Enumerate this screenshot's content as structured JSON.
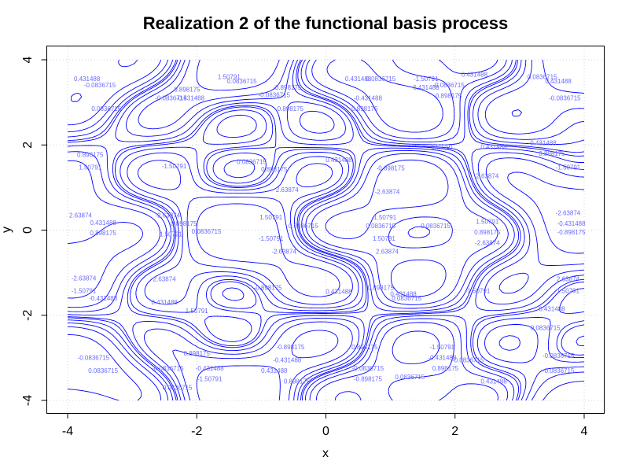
{
  "chart_data": {
    "type": "contour",
    "title": "Realization 2 of the functional basis process",
    "xlabel": "x",
    "ylabel": "y",
    "xlim": [
      -4,
      4
    ],
    "ylim": [
      -4,
      4
    ],
    "x_ticks": [
      -4,
      -2,
      0,
      2,
      4
    ],
    "y_ticks": [
      -4,
      -2,
      0,
      2,
      4
    ],
    "grid": true,
    "line_color": "#0000ff",
    "contour_levels": [
      "-2.63874",
      "-1.50791",
      "-0.898175",
      "-0.431488",
      "-0.0836715",
      "0.0836715",
      "0.431488",
      "0.898175",
      "1.50791",
      "2.63874"
    ],
    "contour_labels": [
      {
        "x": -3.7,
        "y": 3.5,
        "text": "0.431488"
      },
      {
        "x": -3.5,
        "y": 3.35,
        "text": "-0.0836715"
      },
      {
        "x": -3.4,
        "y": 2.8,
        "text": "0.0836715"
      },
      {
        "x": -3.65,
        "y": 1.72,
        "text": "0.898175"
      },
      {
        "x": -3.65,
        "y": 1.42,
        "text": "1.50791"
      },
      {
        "x": -3.8,
        "y": 0.3,
        "text": "2.63874"
      },
      {
        "x": -3.45,
        "y": 0.12,
        "text": "0.431488"
      },
      {
        "x": -3.45,
        "y": -0.12,
        "text": "0.898175"
      },
      {
        "x": -3.75,
        "y": -1.18,
        "text": "-2.63874"
      },
      {
        "x": -3.75,
        "y": -1.48,
        "text": "-1.50791"
      },
      {
        "x": -3.45,
        "y": -1.65,
        "text": "-0.431488"
      },
      {
        "x": -3.6,
        "y": -3.05,
        "text": "-0.0836715"
      },
      {
        "x": -3.45,
        "y": -3.35,
        "text": "0.0836715"
      },
      {
        "x": -2.4,
        "y": 3.05,
        "text": "-0.0836715"
      },
      {
        "x": -2.1,
        "y": 3.05,
        "text": "-0.431488"
      },
      {
        "x": -2.15,
        "y": 3.25,
        "text": "0.898175"
      },
      {
        "x": -1.5,
        "y": 3.55,
        "text": "1.50791"
      },
      {
        "x": -1.3,
        "y": 3.45,
        "text": "0.0836715"
      },
      {
        "x": -2.35,
        "y": 1.45,
        "text": "-1.50791"
      },
      {
        "x": -2.45,
        "y": 0.3,
        "text": "-2.63874"
      },
      {
        "x": -2.2,
        "y": 0.1,
        "text": "0.898175"
      },
      {
        "x": -2.4,
        "y": -0.15,
        "text": "1.50791"
      },
      {
        "x": -1.85,
        "y": -0.08,
        "text": "0.0836715"
      },
      {
        "x": -2.5,
        "y": -1.2,
        "text": "2.63874"
      },
      {
        "x": -2.5,
        "y": -1.75,
        "text": "0.431488"
      },
      {
        "x": -2.0,
        "y": -1.95,
        "text": "1.50791"
      },
      {
        "x": -2.0,
        "y": -2.95,
        "text": "0.898175"
      },
      {
        "x": -2.45,
        "y": -3.3,
        "text": "-0.0836715"
      },
      {
        "x": -1.8,
        "y": -3.3,
        "text": "-0.431488"
      },
      {
        "x": -1.8,
        "y": -3.55,
        "text": "-1.50791"
      },
      {
        "x": -2.3,
        "y": -3.75,
        "text": "0.0836715"
      },
      {
        "x": -0.6,
        "y": 3.3,
        "text": "-0.898175"
      },
      {
        "x": -0.8,
        "y": 3.12,
        "text": "-0.0836715"
      },
      {
        "x": -0.55,
        "y": 2.8,
        "text": "0.898175"
      },
      {
        "x": -1.15,
        "y": 1.55,
        "text": "0.0836715"
      },
      {
        "x": -0.8,
        "y": 1.38,
        "text": "0.898175"
      },
      {
        "x": -0.6,
        "y": 0.9,
        "text": "2.63874"
      },
      {
        "x": -0.85,
        "y": 0.25,
        "text": "1.50791"
      },
      {
        "x": -0.35,
        "y": 0.05,
        "text": "0.0836715"
      },
      {
        "x": -0.85,
        "y": -0.25,
        "text": "-1.50791"
      },
      {
        "x": -0.65,
        "y": -0.55,
        "text": "-2.63874"
      },
      {
        "x": -0.9,
        "y": -1.4,
        "text": "-0.898175"
      },
      {
        "x": 0.2,
        "y": 1.6,
        "text": "0.431488"
      },
      {
        "x": 0.2,
        "y": -1.5,
        "text": "0.431488"
      },
      {
        "x": -0.55,
        "y": -2.8,
        "text": "-0.898175"
      },
      {
        "x": -0.6,
        "y": -3.1,
        "text": "-0.431488"
      },
      {
        "x": -0.8,
        "y": -3.35,
        "text": "0.431488"
      },
      {
        "x": -0.45,
        "y": -3.6,
        "text": "0.898175"
      },
      {
        "x": 0.5,
        "y": 3.5,
        "text": "0.431488"
      },
      {
        "x": 0.85,
        "y": 3.5,
        "text": "0.0836715"
      },
      {
        "x": 0.65,
        "y": 3.05,
        "text": "-0.431488"
      },
      {
        "x": 0.6,
        "y": 2.8,
        "text": "0.898175"
      },
      {
        "x": 1.0,
        "y": 1.4,
        "text": "-0.898175"
      },
      {
        "x": 0.95,
        "y": 0.85,
        "text": "-2.63874"
      },
      {
        "x": 0.9,
        "y": 0.25,
        "text": "-1.50791"
      },
      {
        "x": 0.85,
        "y": 0.05,
        "text": "0.0836715"
      },
      {
        "x": 0.9,
        "y": -0.25,
        "text": "1.50791"
      },
      {
        "x": 0.95,
        "y": -0.55,
        "text": "2.63874"
      },
      {
        "x": 0.85,
        "y": -1.4,
        "text": "0.898175"
      },
      {
        "x": 1.25,
        "y": -1.65,
        "text": "0.0836715"
      },
      {
        "x": 0.6,
        "y": -2.8,
        "text": "0.898175"
      },
      {
        "x": 0.65,
        "y": -3.3,
        "text": "-0.0836715"
      },
      {
        "x": 0.65,
        "y": -3.55,
        "text": "-0.898175"
      },
      {
        "x": 1.3,
        "y": -3.5,
        "text": "0.0836715"
      },
      {
        "x": 1.55,
        "y": 3.5,
        "text": "-1.50791"
      },
      {
        "x": 1.55,
        "y": 3.3,
        "text": "0.431488"
      },
      {
        "x": 1.9,
        "y": 3.35,
        "text": "-0.0836715"
      },
      {
        "x": 1.9,
        "y": 3.1,
        "text": "0.898175"
      },
      {
        "x": 2.3,
        "y": 3.6,
        "text": "0.431488"
      },
      {
        "x": 1.8,
        "y": 1.9,
        "text": "1.50791"
      },
      {
        "x": 2.6,
        "y": 1.9,
        "text": "0.431488"
      },
      {
        "x": 2.5,
        "y": 1.22,
        "text": "2.63874"
      },
      {
        "x": 2.5,
        "y": 0.15,
        "text": "1.50791"
      },
      {
        "x": 1.7,
        "y": 0.05,
        "text": "0.0836715"
      },
      {
        "x": 2.5,
        "y": -0.1,
        "text": "0.898175"
      },
      {
        "x": 2.5,
        "y": -0.35,
        "text": "-2.63874"
      },
      {
        "x": 2.35,
        "y": -1.48,
        "text": "-1.50791"
      },
      {
        "x": 1.2,
        "y": -1.55,
        "text": "0.431488"
      },
      {
        "x": 1.8,
        "y": -2.8,
        "text": "-1.50791"
      },
      {
        "x": 1.8,
        "y": -3.05,
        "text": "-0.431488"
      },
      {
        "x": 2.2,
        "y": -3.1,
        "text": "-0.0836715"
      },
      {
        "x": 1.85,
        "y": -3.3,
        "text": "0.898175"
      },
      {
        "x": 2.6,
        "y": -3.6,
        "text": "0.431488"
      },
      {
        "x": 3.35,
        "y": 3.55,
        "text": "0.0836715"
      },
      {
        "x": 3.6,
        "y": 3.45,
        "text": "0.431488"
      },
      {
        "x": 3.7,
        "y": 3.05,
        "text": "-0.0836715"
      },
      {
        "x": 3.35,
        "y": 2.0,
        "text": "-0.431488"
      },
      {
        "x": 3.5,
        "y": 1.75,
        "text": "0.898175"
      },
      {
        "x": 3.75,
        "y": 1.42,
        "text": "-1.50791"
      },
      {
        "x": 3.75,
        "y": 0.35,
        "text": "-2.63874"
      },
      {
        "x": 3.8,
        "y": 0.1,
        "text": "-0.431488"
      },
      {
        "x": 3.8,
        "y": -0.1,
        "text": "-0.898175"
      },
      {
        "x": 3.75,
        "y": -1.2,
        "text": "2.63874"
      },
      {
        "x": 3.75,
        "y": -1.48,
        "text": "1.50791"
      },
      {
        "x": 3.5,
        "y": -1.9,
        "text": "0.431488"
      },
      {
        "x": 3.4,
        "y": -2.35,
        "text": "0.0836715"
      },
      {
        "x": 3.6,
        "y": -3.0,
        "text": "-0.0836715"
      },
      {
        "x": 3.6,
        "y": -3.35,
        "text": "-0.0836715"
      }
    ]
  }
}
